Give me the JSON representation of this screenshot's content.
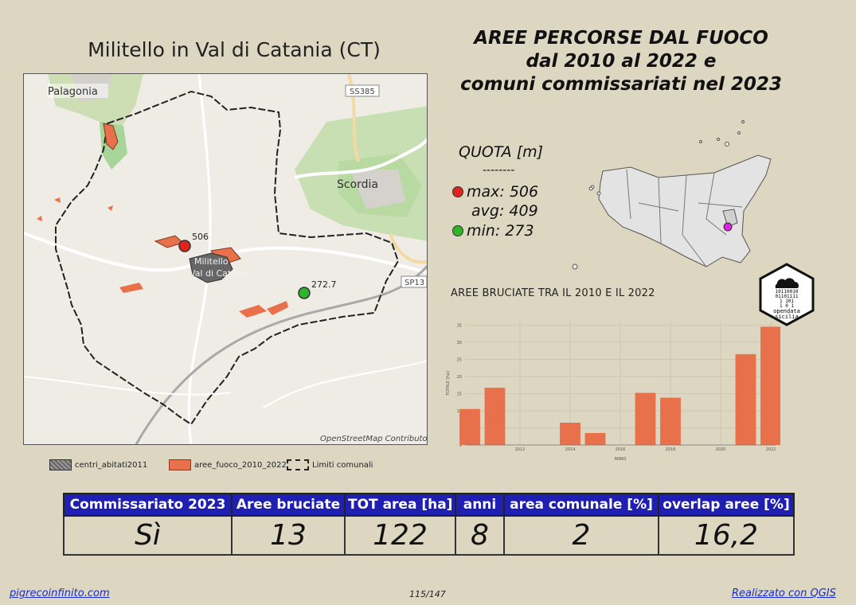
{
  "town_title": "Militello in Val di Catania (CT)",
  "main_title": [
    "AREE PERCORSE DAL FUOCO",
    "dal 2010 al 2022 e",
    "comuni commissariati nel 2023"
  ],
  "map": {
    "labels": {
      "palagonia": "Palagonia",
      "scordia": "Scordia",
      "ss385": "SS385",
      "sp13": "SP13",
      "town1": "Militello",
      "town2": "Val di Catania",
      "max_value": "506",
      "min_value": "272.7",
      "attribution": "OpenStreetMap Contributor"
    }
  },
  "legend": {
    "centri": "centri_abitati2011",
    "aree": "aree_fuoco_2010_2022",
    "limiti": "Limiti comunali"
  },
  "quota": {
    "title": "QUOTA [m]",
    "separator": "--------",
    "max": "max: 506",
    "avg": "avg: 409",
    "min": "min: 273",
    "max_color": "#e0231e",
    "min_color": "#2fb52b"
  },
  "logo": {
    "bits": [
      "10110010",
      "01101111",
      "1  101",
      "1   0  1"
    ],
    "text1": "opendata",
    "text2": "sicilia"
  },
  "chart_title": "AREE BRUCIATE TRA IL 2010 E IL 2022",
  "chart_data": {
    "type": "bar",
    "x": [
      2010,
      2011,
      2012,
      2013,
      2014,
      2015,
      2016,
      2017,
      2018,
      2019,
      2020,
      2021,
      2022
    ],
    "values": [
      10.5,
      16.7,
      0,
      0,
      6.5,
      3.5,
      0,
      15.2,
      13.8,
      0,
      0,
      26.5,
      34.5
    ],
    "xticks": [
      "2012",
      "2014",
      "2016",
      "2018",
      "2020",
      "2022"
    ],
    "yticks": [
      "0",
      "5",
      "10",
      "15",
      "20",
      "25",
      "30",
      "35"
    ],
    "ylim": [
      0,
      36
    ],
    "xlabel": "ANNO",
    "ylabel": "TOTALE [ha]",
    "color": "#e8704a"
  },
  "table": {
    "headers": [
      "Commissariato 2023",
      "Aree bruciate",
      "TOT area [ha]",
      "anni",
      "area comunale [%]",
      "overlap aree [%]"
    ],
    "values": [
      "Sì",
      "13",
      "122",
      "8",
      "2",
      "16,2"
    ]
  },
  "footer": {
    "left": "pigrecoinfinito.com",
    "page": "115/147",
    "right": "Realizzato con QGIS"
  }
}
